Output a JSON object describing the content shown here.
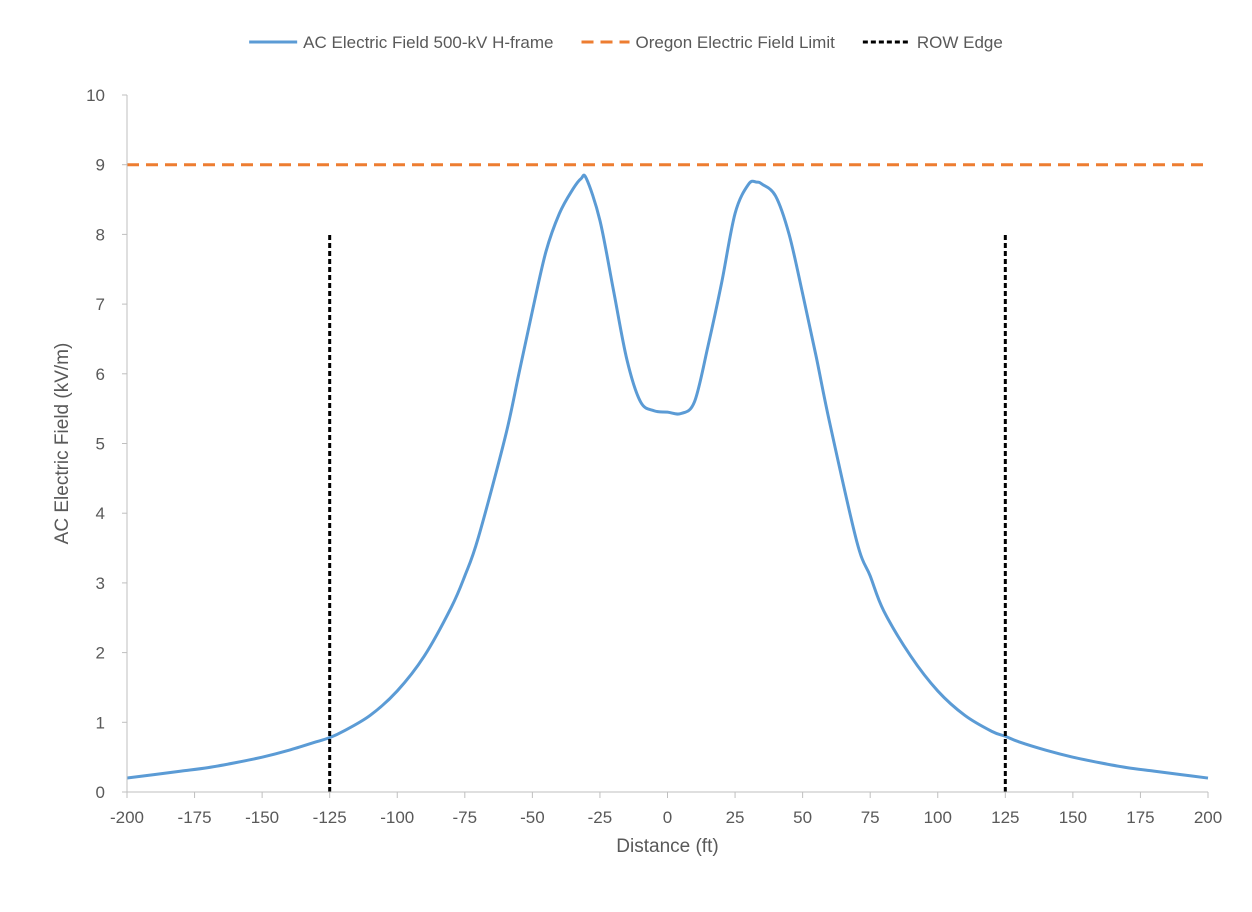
{
  "chart_data": {
    "type": "line",
    "xlabel": "Distance (ft)",
    "ylabel": "AC Electric Field (kV/m)",
    "xlim": [
      -200,
      200
    ],
    "ylim": [
      0,
      10
    ],
    "x_ticks": [
      -200,
      -175,
      -150,
      -125,
      -100,
      -75,
      -50,
      -25,
      0,
      25,
      50,
      75,
      100,
      125,
      150,
      175,
      200
    ],
    "y_ticks": [
      0,
      1,
      2,
      3,
      4,
      5,
      6,
      7,
      8,
      9,
      10
    ],
    "legend_position": "top",
    "grid": false,
    "series": [
      {
        "name": "AC Electric Field 500-kV H-frame",
        "color": "#5B9BD5",
        "style": "solid",
        "x": [
          -200,
          -190,
          -180,
          -170,
          -160,
          -150,
          -140,
          -130,
          -125,
          -120,
          -110,
          -100,
          -90,
          -80,
          -75,
          -70,
          -60,
          -55,
          -50,
          -45,
          -40,
          -35,
          -32,
          -30,
          -25,
          -20,
          -15,
          -10,
          -5,
          0,
          5,
          10,
          15,
          20,
          25,
          30,
          33,
          35,
          40,
          45,
          50,
          55,
          60,
          70,
          75,
          80,
          90,
          100,
          110,
          120,
          125,
          130,
          140,
          150,
          160,
          170,
          180,
          190,
          200
        ],
        "y": [
          0.2,
          0.25,
          0.3,
          0.35,
          0.42,
          0.5,
          0.6,
          0.72,
          0.78,
          0.87,
          1.1,
          1.45,
          1.95,
          2.65,
          3.1,
          3.65,
          5.1,
          6.0,
          6.9,
          7.75,
          8.3,
          8.65,
          8.8,
          8.8,
          8.2,
          7.2,
          6.2,
          5.6,
          5.47,
          5.45,
          5.43,
          5.6,
          6.4,
          7.3,
          8.3,
          8.72,
          8.75,
          8.72,
          8.55,
          8.0,
          7.15,
          6.25,
          5.3,
          3.6,
          3.1,
          2.6,
          1.95,
          1.45,
          1.1,
          0.87,
          0.8,
          0.72,
          0.6,
          0.5,
          0.42,
          0.35,
          0.3,
          0.25,
          0.2
        ]
      },
      {
        "name": "Oregon Electric Field Limit",
        "color": "#ED7D31",
        "style": "dashed",
        "x": [
          -200,
          200
        ],
        "y": [
          9,
          9
        ]
      },
      {
        "name": "ROW Edge",
        "color": "#000000",
        "style": "dotted",
        "segments": [
          {
            "x": [
              -125,
              -125
            ],
            "y": [
              0,
              8
            ]
          },
          {
            "x": [
              125,
              125
            ],
            "y": [
              0,
              8
            ]
          }
        ]
      }
    ]
  }
}
